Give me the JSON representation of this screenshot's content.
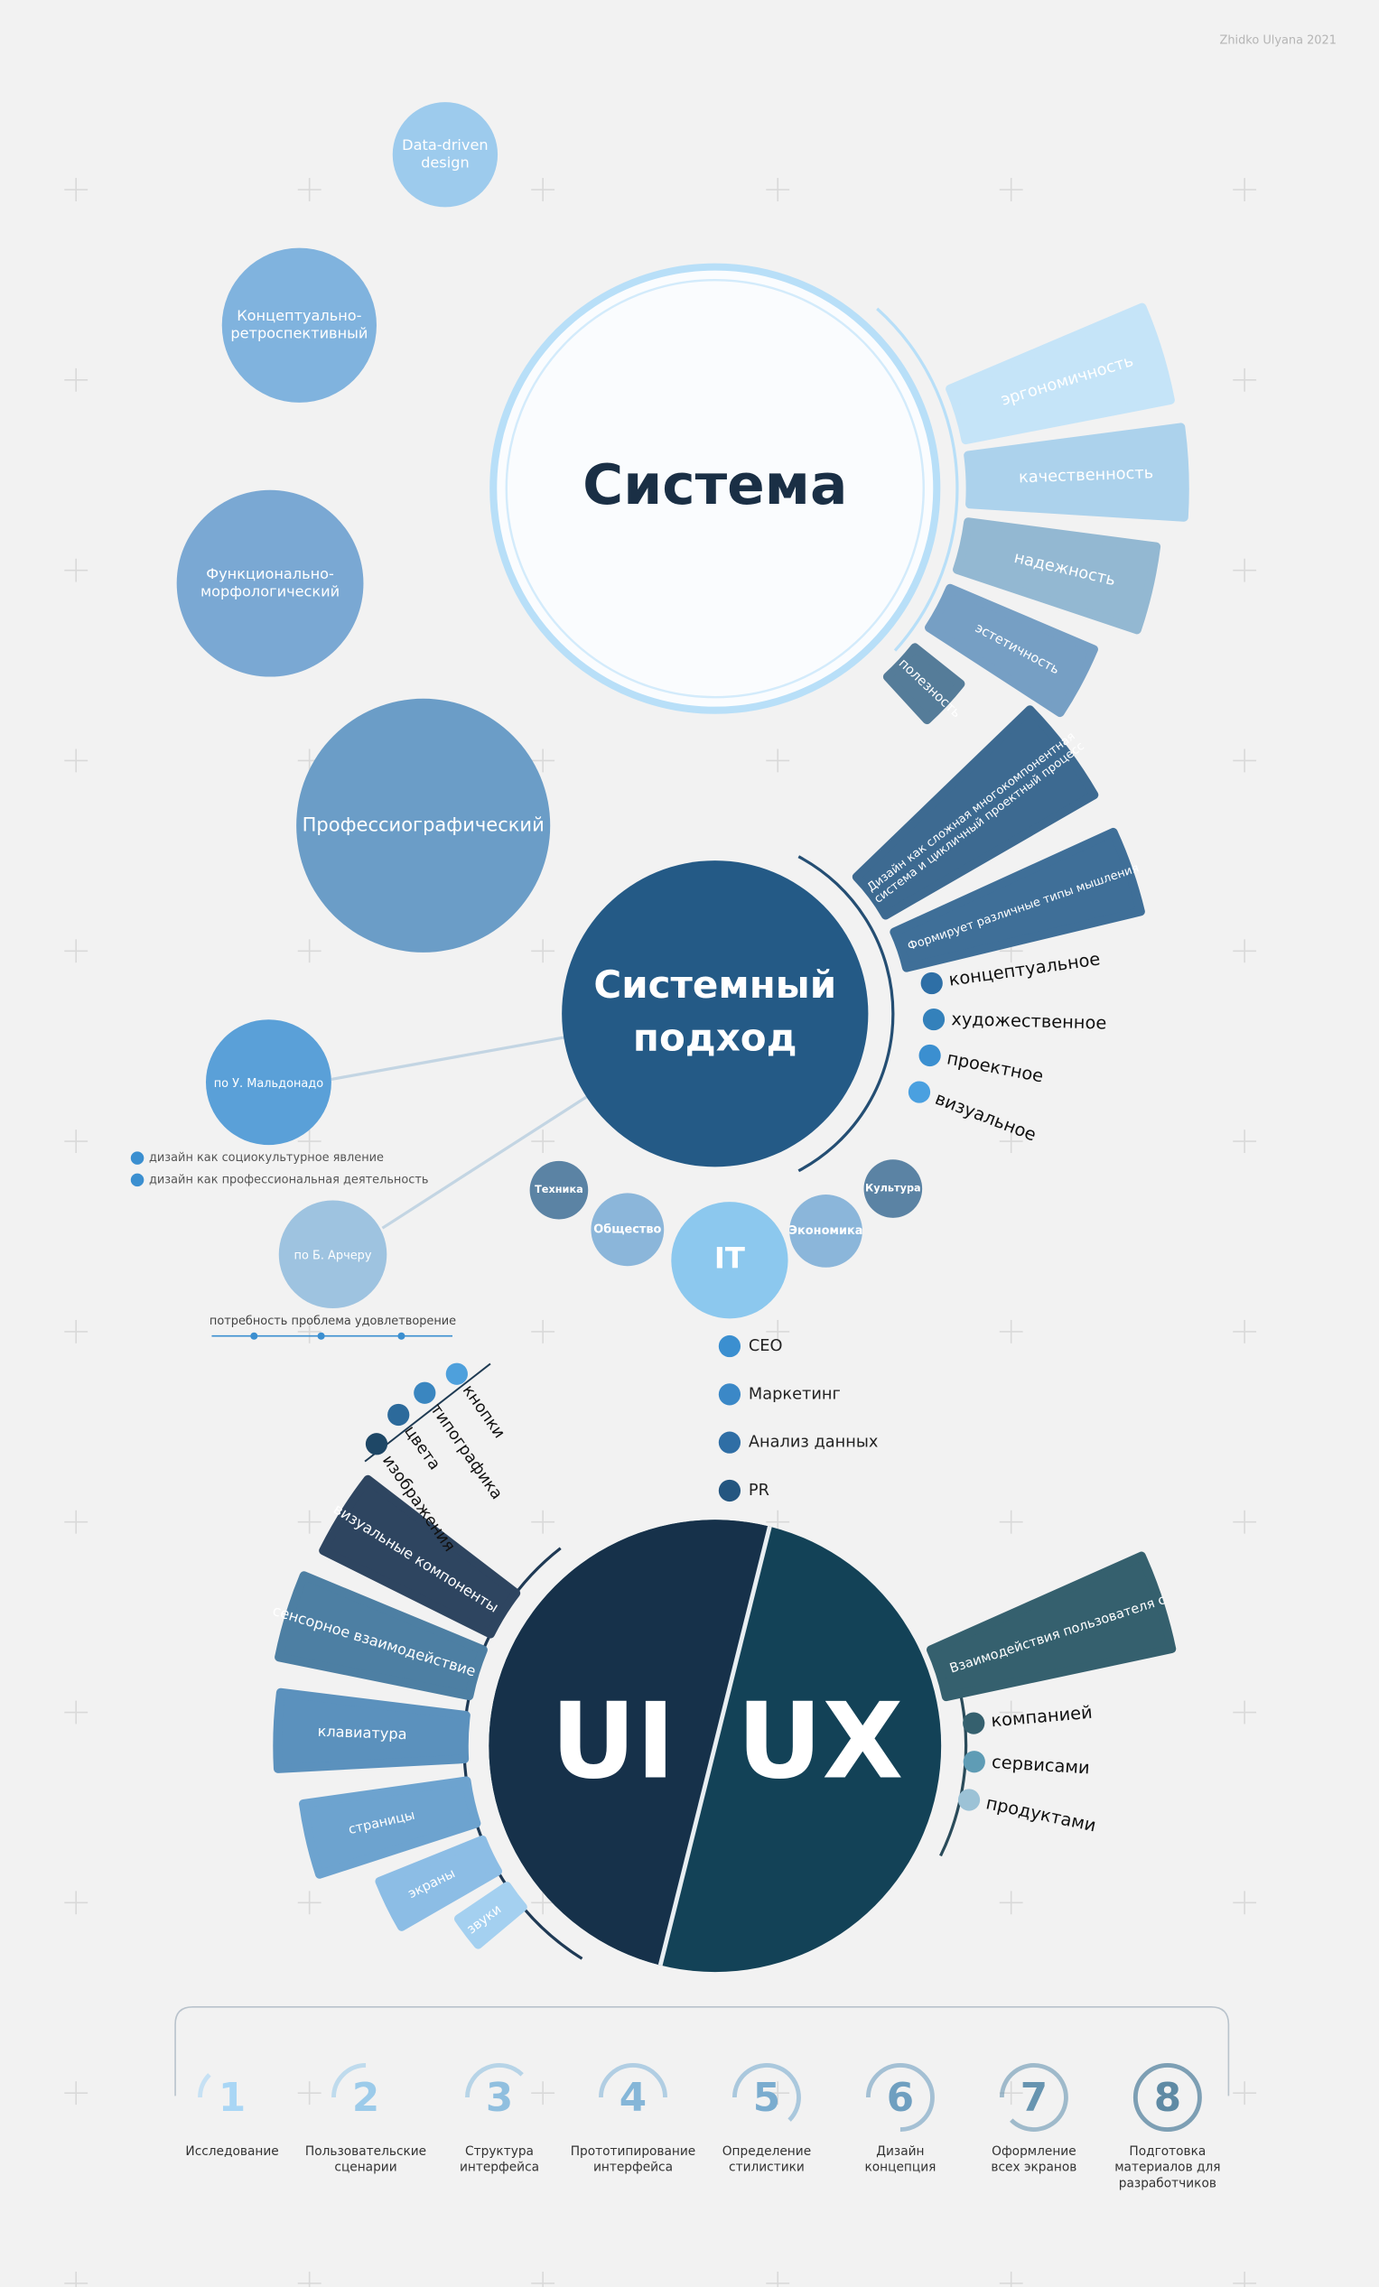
{
  "credit": "Zhidko Ulyana 2021",
  "system": {
    "title": "Система",
    "methods": [
      {
        "label_lines": [
          "Data-driven",
          "design"
        ]
      },
      {
        "label_lines": [
          "Концептуально-",
          "ретроспективный"
        ]
      },
      {
        "label_lines": [
          "Функционально-",
          "морфологический"
        ]
      },
      {
        "label_lines": [
          "Профессиографический"
        ]
      }
    ],
    "qualities": [
      "эргономичность",
      "качественность",
      "надежность",
      "эстетичность",
      "полезность"
    ]
  },
  "approach": {
    "title_lines": [
      "Системный",
      "подход"
    ],
    "statements": [
      {
        "lines": [
          "Дизайн как сложная многокомпонентная",
          "система и цикличный проектный процесс"
        ]
      },
      {
        "lines": [
          "Формирует различные типы мышления"
        ]
      }
    ],
    "thinking": [
      "концептуальное",
      "художественное",
      "проектное",
      "визуальное"
    ],
    "authors": [
      {
        "name": "по У. Мальдонадо",
        "notes": [
          "дизайн как социокультурное явление",
          "дизайн как профессиональная деятельность"
        ]
      },
      {
        "name": "по Б. Арчеру",
        "notes": [
          "потребность проблема удовлетворение"
        ]
      }
    ],
    "spheres": [
      "Техника",
      "Общество",
      "IT",
      "Экономика",
      "Культура"
    ],
    "it_roles": [
      "CEO",
      "Маркетинг",
      "Анализ данных",
      "PR"
    ]
  },
  "uiux": {
    "ui": "UI",
    "ux": "UX",
    "ui_components": [
      "визуальные компоненты",
      "сенсорное взаимодействие",
      "клавиатура",
      "страницы",
      "экраны",
      "звуки"
    ],
    "visual_elements": [
      "изображения",
      "цвета",
      "типографика",
      "кнопки"
    ],
    "ux_statement": "Взаимодействия пользователя с",
    "ux_targets": [
      "компанией",
      "сервисами",
      "продуктами"
    ]
  },
  "process": {
    "steps": [
      {
        "number": 1,
        "label_lines": [
          "Исследование"
        ]
      },
      {
        "number": 2,
        "label_lines": [
          "Пользовательские",
          "сценарии"
        ]
      },
      {
        "number": 3,
        "label_lines": [
          "Структура",
          "интерфейса"
        ]
      },
      {
        "number": 4,
        "label_lines": [
          "Прототипирование",
          "интерфейса"
        ]
      },
      {
        "number": 5,
        "label_lines": [
          "Определение",
          "стилистики"
        ]
      },
      {
        "number": 6,
        "label_lines": [
          "Дизайн",
          "концепция"
        ]
      },
      {
        "number": 7,
        "label_lines": [
          "Оформление",
          "всех экранов"
        ]
      },
      {
        "number": 8,
        "label_lines": [
          "Подготовка",
          "материалов для",
          "разработчиков"
        ]
      }
    ]
  }
}
